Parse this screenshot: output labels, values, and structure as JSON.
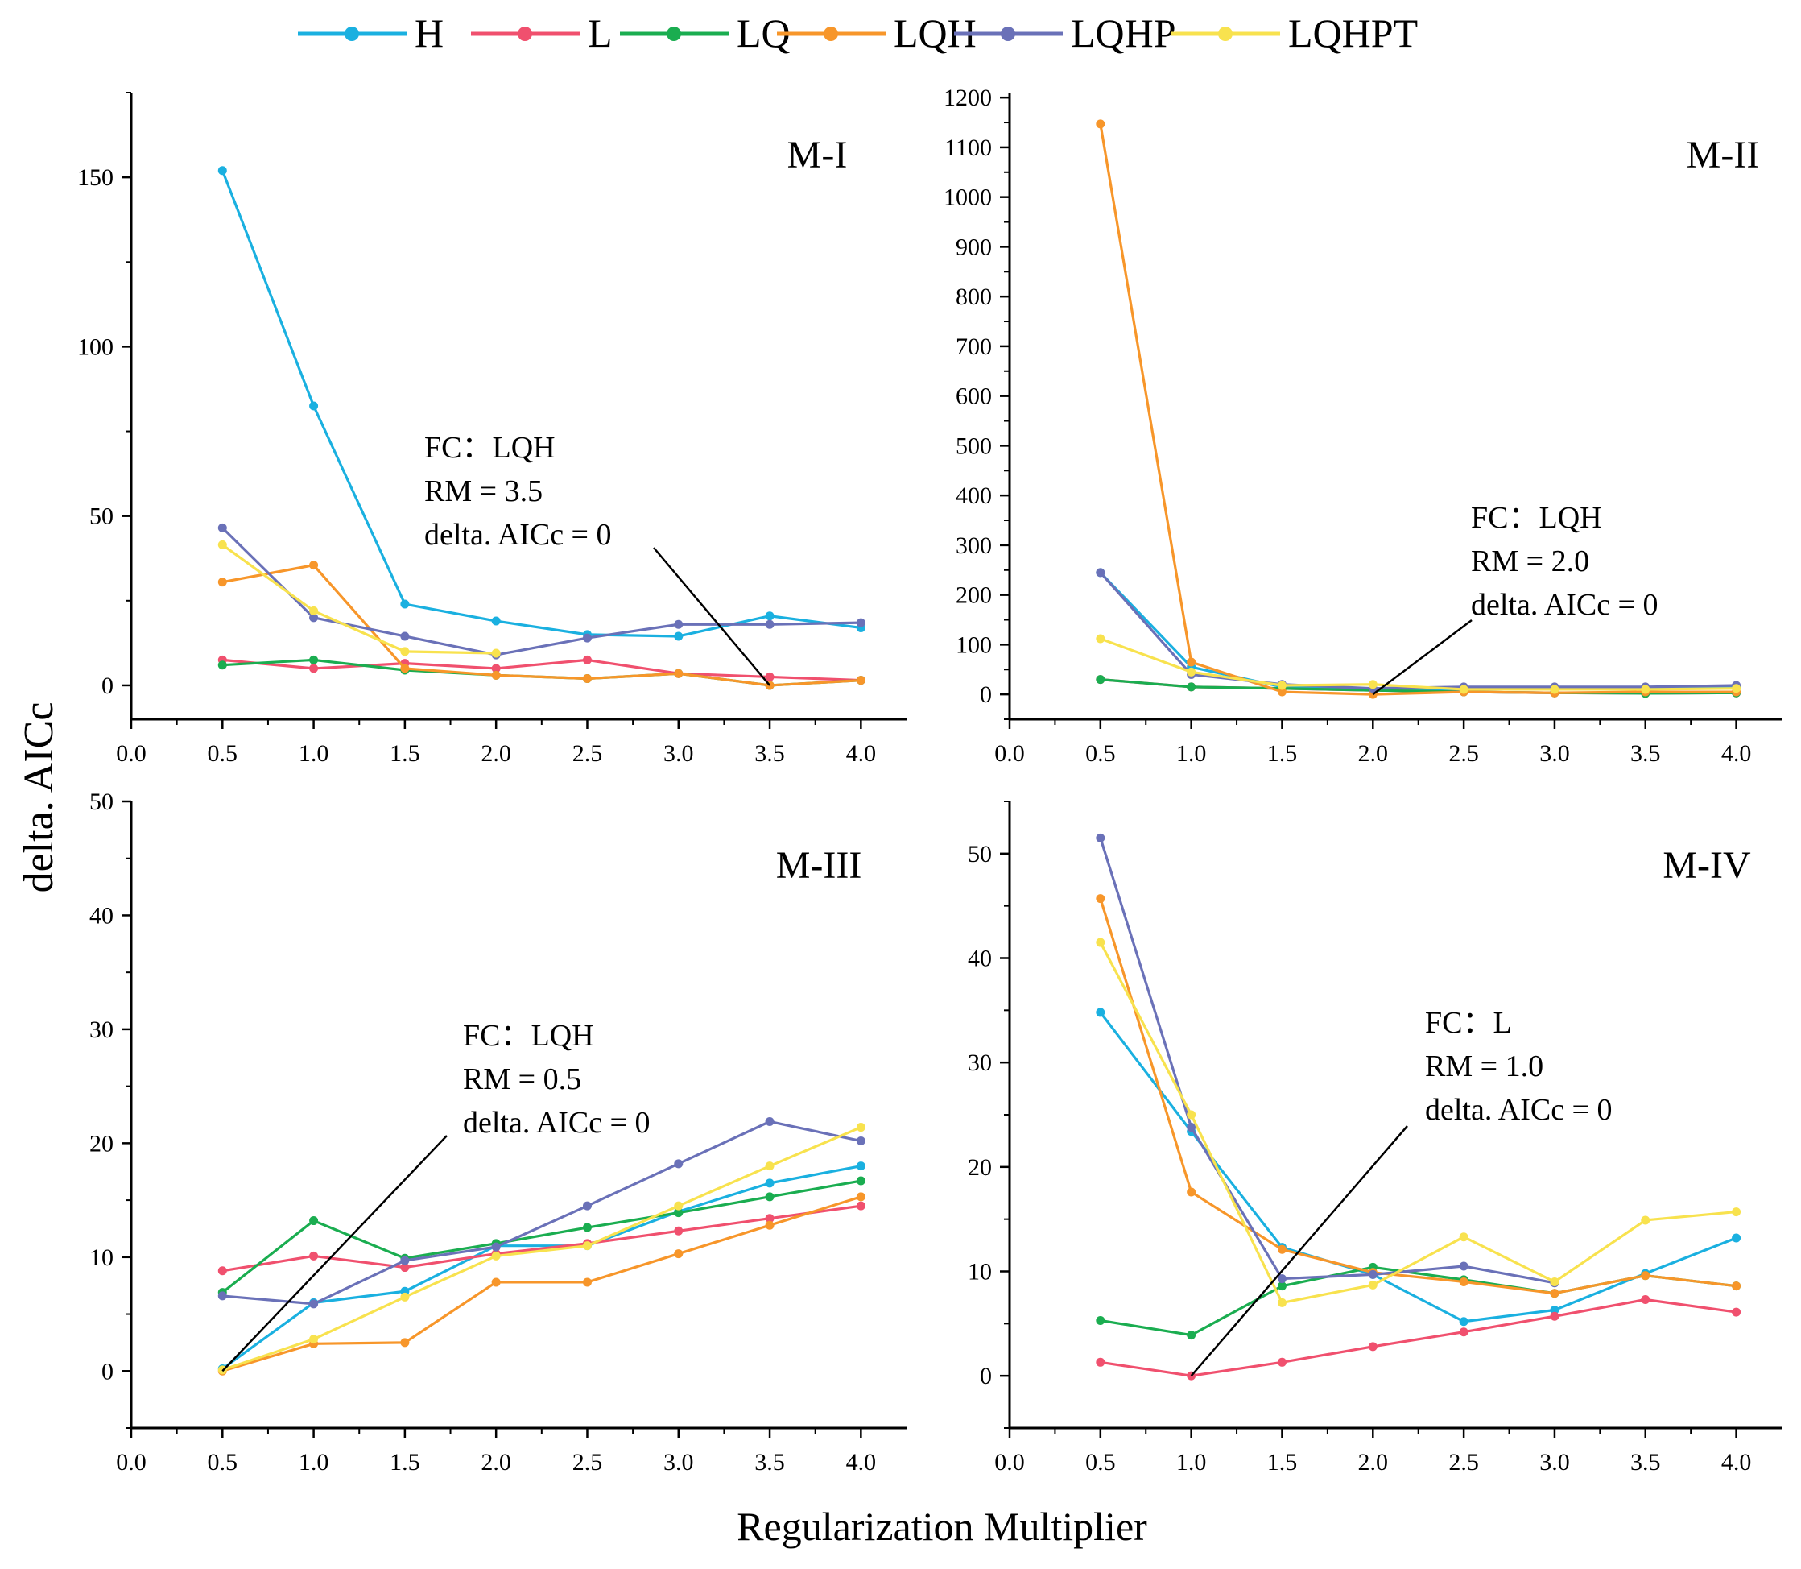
{
  "figure": {
    "ylabel": "delta. AICc",
    "xlabel": "Regularization Multiplier"
  },
  "legend": {
    "items": [
      {
        "name": "H",
        "color": "#1ab0e0"
      },
      {
        "name": "L",
        "color": "#f0506e"
      },
      {
        "name": "LQ",
        "color": "#1aad50"
      },
      {
        "name": "LQH",
        "color": "#f7962a"
      },
      {
        "name": "LQHP",
        "color": "#6a71b8"
      },
      {
        "name": "LQHPT",
        "color": "#f8e24e"
      }
    ]
  },
  "chart_data": [
    {
      "id": "m1",
      "type": "line",
      "title": "M-I",
      "xlim": [
        0,
        4.25
      ],
      "ylim": [
        -10,
        175
      ],
      "xticks": [
        "0.0",
        "0.5",
        "1.0",
        "1.5",
        "2.0",
        "2.5",
        "3.0",
        "3.5",
        "4.0"
      ],
      "yticks": [
        0,
        50,
        100,
        150
      ],
      "x": [
        0.5,
        1.0,
        1.5,
        2.0,
        2.5,
        3.0,
        3.5,
        4.0
      ],
      "series": [
        {
          "name": "H",
          "values": [
            152,
            82.5,
            24,
            19,
            15,
            14.5,
            20.5,
            17
          ]
        },
        {
          "name": "L",
          "values": [
            7.5,
            5,
            6.5,
            5,
            7.5,
            3.5,
            2.5,
            1.5
          ]
        },
        {
          "name": "LQ",
          "values": [
            6,
            7.5,
            4.5,
            3,
            2,
            3.5,
            0,
            1.5
          ]
        },
        {
          "name": "LQH",
          "values": [
            30.5,
            35.5,
            5,
            3,
            2,
            3.5,
            0,
            1.5
          ]
        },
        {
          "name": "LQHP",
          "values": [
            46.5,
            20,
            14.5,
            9,
            14,
            18,
            18,
            18.5
          ]
        },
        {
          "name": "LQHPT",
          "values": [
            41.5,
            22,
            10,
            9.5,
            null,
            null,
            null,
            null
          ]
        }
      ],
      "annotation": {
        "lines": [
          "FC：LQH",
          "RM = 3.5",
          "delta. AICc = 0"
        ],
        "target": [
          3.5,
          0
        ]
      }
    },
    {
      "id": "m2",
      "type": "line",
      "title": "M-II",
      "xlim": [
        0,
        4.25
      ],
      "ylim": [
        -50,
        1210
      ],
      "xticks": [
        "0.0",
        "0.5",
        "1.0",
        "1.5",
        "2.0",
        "2.5",
        "3.0",
        "3.5",
        "4.0"
      ],
      "yticks": [
        0,
        100,
        200,
        300,
        400,
        500,
        600,
        700,
        800,
        900,
        1000,
        1100,
        1200
      ],
      "x": [
        0.5,
        1.0,
        1.5,
        2.0,
        2.5,
        3.0,
        3.5,
        4.0
      ],
      "series": [
        {
          "name": "H",
          "values": [
            245,
            55,
            15,
            10,
            10,
            10,
            10,
            15
          ]
        },
        {
          "name": "L",
          "values": [
            30,
            15,
            12,
            8,
            5,
            3,
            2,
            3
          ]
        },
        {
          "name": "LQ",
          "values": [
            30,
            15,
            12,
            8,
            5,
            3,
            2,
            3
          ]
        },
        {
          "name": "LQH",
          "values": [
            1147,
            65,
            5,
            0,
            5,
            3,
            5,
            5
          ]
        },
        {
          "name": "LQHP",
          "values": [
            245,
            40,
            20,
            12,
            15,
            15,
            15,
            18
          ]
        },
        {
          "name": "LQHPT",
          "values": [
            112,
            45,
            18,
            20,
            10,
            10,
            10,
            12
          ]
        }
      ],
      "annotation": {
        "lines": [
          "FC：LQH",
          "RM = 2.0",
          "delta. AICc = 0"
        ],
        "target": [
          2.0,
          0
        ]
      }
    },
    {
      "id": "m3",
      "type": "line",
      "title": "M-III",
      "xlim": [
        0,
        4.25
      ],
      "ylim": [
        -5,
        50
      ],
      "xticks": [
        "0.0",
        "0.5",
        "1.0",
        "1.5",
        "2.0",
        "2.5",
        "3.0",
        "3.5",
        "4.0"
      ],
      "yticks": [
        0,
        10,
        20,
        30,
        40,
        50
      ],
      "x": [
        0.5,
        1.0,
        1.5,
        2.0,
        2.5,
        3.0,
        3.5,
        4.0
      ],
      "series": [
        {
          "name": "H",
          "values": [
            0.2,
            6,
            7,
            11,
            11,
            14,
            16.5,
            18
          ]
        },
        {
          "name": "L",
          "values": [
            8.8,
            10.1,
            9.1,
            10.3,
            11.2,
            12.3,
            13.4,
            14.5
          ]
        },
        {
          "name": "LQ",
          "values": [
            6.9,
            13.2,
            9.9,
            11.2,
            12.6,
            13.9,
            15.3,
            16.7
          ]
        },
        {
          "name": "LQH",
          "values": [
            0,
            2.4,
            2.5,
            7.8,
            7.8,
            10.3,
            12.8,
            15.3
          ]
        },
        {
          "name": "LQHP",
          "values": [
            6.6,
            5.9,
            9.7,
            10.9,
            14.5,
            18.2,
            21.9,
            20.2
          ]
        },
        {
          "name": "LQHPT",
          "values": [
            0.1,
            2.8,
            6.5,
            10.1,
            11,
            14.5,
            18,
            21.4
          ]
        }
      ],
      "annotation": {
        "lines": [
          "FC：LQH",
          "RM = 0.5",
          "delta. AICc = 0"
        ],
        "target": [
          0.5,
          0
        ]
      }
    },
    {
      "id": "m4",
      "type": "line",
      "title": "M-IV",
      "xlim": [
        0,
        4.25
      ],
      "ylim": [
        -5,
        55
      ],
      "xticks": [
        "0.0",
        "0.5",
        "1.0",
        "1.5",
        "2.0",
        "2.5",
        "3.0",
        "3.5",
        "4.0"
      ],
      "yticks": [
        0,
        10,
        20,
        30,
        40,
        50
      ],
      "x": [
        0.5,
        1.0,
        1.5,
        2.0,
        2.5,
        3.0,
        3.5,
        4.0
      ],
      "series": [
        {
          "name": "H",
          "values": [
            34.8,
            23.4,
            12.3,
            9.7,
            5.2,
            6.3,
            9.8,
            13.2
          ]
        },
        {
          "name": "L",
          "values": [
            1.3,
            0,
            1.3,
            2.8,
            4.2,
            5.7,
            7.3,
            6.1
          ]
        },
        {
          "name": "LQ",
          "values": [
            5.3,
            3.9,
            8.6,
            10.4,
            9.2,
            7.9,
            9.6,
            8.6
          ]
        },
        {
          "name": "LQH",
          "values": [
            45.7,
            17.6,
            12.1,
            9.9,
            9,
            7.9,
            9.6,
            8.6
          ]
        },
        {
          "name": "LQHP",
          "values": [
            51.5,
            23.8,
            9.3,
            9.7,
            10.5,
            8.9,
            null,
            null
          ]
        },
        {
          "name": "LQHPT",
          "values": [
            41.5,
            25,
            7,
            8.7,
            13.3,
            9,
            14.9,
            15.7
          ]
        }
      ],
      "annotation": {
        "lines": [
          "FC：L",
          "RM = 1.0",
          "delta. AICc = 0"
        ],
        "target": [
          1.0,
          0
        ]
      }
    }
  ]
}
